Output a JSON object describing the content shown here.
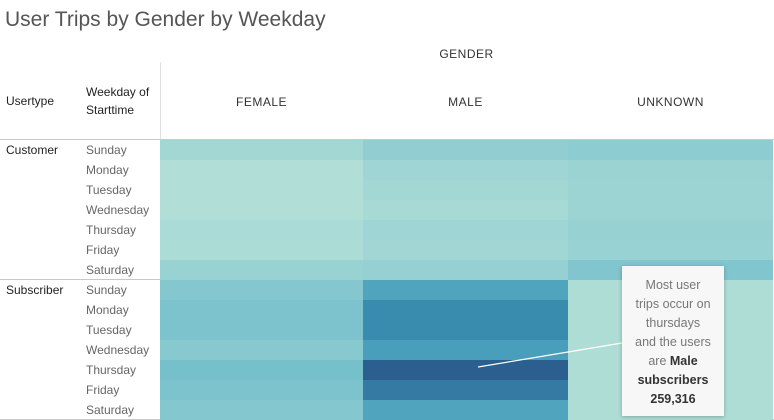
{
  "title": "User Trips by Gender by Weekday",
  "gender_header": "GENDER",
  "row_headers": {
    "usertype": "Usertype",
    "weekday_line1": "Weekday of",
    "weekday_line2": "Starttime"
  },
  "annotation": {
    "line1": "Most user",
    "line2": "trips occur on",
    "line3": "thursdays",
    "line4": "and the users",
    "line5a": "are ",
    "line5b": "Male",
    "line6": "subscribers",
    "line7": "259,316"
  },
  "chart_data": {
    "type": "heatmap",
    "title": "User Trips by Gender by Weekday",
    "columns": [
      "FEMALE",
      "MALE",
      "UNKNOWN"
    ],
    "usertypes": [
      "Customer",
      "Subscriber"
    ],
    "weekdays": [
      "Sunday",
      "Monday",
      "Tuesday",
      "Wednesday",
      "Thursday",
      "Friday",
      "Saturday"
    ],
    "rows": [
      {
        "usertype": "Customer",
        "weekday": "Sunday",
        "values": [
          0.2,
          0.3,
          0.33
        ]
      },
      {
        "usertype": "Customer",
        "weekday": "Monday",
        "values": [
          0.1,
          0.22,
          0.25
        ]
      },
      {
        "usertype": "Customer",
        "weekday": "Tuesday",
        "values": [
          0.1,
          0.2,
          0.24
        ]
      },
      {
        "usertype": "Customer",
        "weekday": "Wednesday",
        "values": [
          0.1,
          0.16,
          0.24
        ]
      },
      {
        "usertype": "Customer",
        "weekday": "Thursday",
        "values": [
          0.14,
          0.22,
          0.27
        ]
      },
      {
        "usertype": "Customer",
        "weekday": "Friday",
        "values": [
          0.13,
          0.21,
          0.26
        ]
      },
      {
        "usertype": "Customer",
        "weekday": "Saturday",
        "values": [
          0.26,
          0.28,
          0.4
        ]
      },
      {
        "usertype": "Subscriber",
        "weekday": "Sunday",
        "values": [
          0.38,
          0.66,
          0.12
        ]
      },
      {
        "usertype": "Subscriber",
        "weekday": "Monday",
        "values": [
          0.42,
          0.8,
          0.12
        ]
      },
      {
        "usertype": "Subscriber",
        "weekday": "Tuesday",
        "values": [
          0.42,
          0.8,
          0.12
        ]
      },
      {
        "usertype": "Subscriber",
        "weekday": "Wednesday",
        "values": [
          0.36,
          0.7,
          0.12
        ]
      },
      {
        "usertype": "Subscriber",
        "weekday": "Thursday",
        "values": [
          0.46,
          1.0,
          0.12
        ]
      },
      {
        "usertype": "Subscriber",
        "weekday": "Friday",
        "values": [
          0.42,
          0.88,
          0.12
        ]
      },
      {
        "usertype": "Subscriber",
        "weekday": "Saturday",
        "values": [
          0.38,
          0.66,
          0.12
        ]
      }
    ],
    "color_scale": [
      "#bfe6d9",
      "#9bd3d3",
      "#6fbccb",
      "#3e97b7",
      "#2a5f8f"
    ],
    "grid": false,
    "legend": "none"
  }
}
